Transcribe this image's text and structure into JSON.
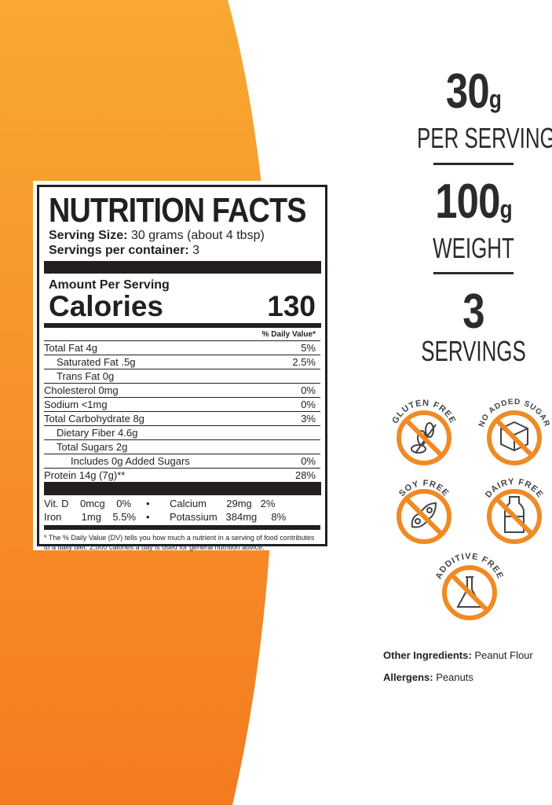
{
  "colors": {
    "orange_light": "#f9a832",
    "orange_dark": "#f47b20",
    "text": "#231f20",
    "badge": "#f08a24"
  },
  "label": {
    "title": "NUTRITION FACTS",
    "serving_size_label": "Serving Size:",
    "serving_size": "30 grams (about 4 tbsp)",
    "servings_label": "Servings per container:",
    "servings": "3",
    "amount_per_serving": "Amount Per Serving",
    "calories_label": "Calories",
    "calories": "130",
    "daily_value_header": "% Daily Value*",
    "rows": [
      {
        "name": "Total Fat  4g",
        "dv": "5%"
      },
      {
        "name": "Saturated Fat .5g",
        "dv": "2.5%"
      },
      {
        "name": "Trans Fat 0g",
        "dv": ""
      },
      {
        "name": "Cholesterol 0mg",
        "dv": "0%"
      },
      {
        "name": "Sodium <1mg",
        "dv": "0%"
      },
      {
        "name": "Total Carbohydrate  8g",
        "dv": "3%"
      },
      {
        "name": "Dietary Fiber  4.6g",
        "dv": ""
      },
      {
        "name": "Total Sugars  2g",
        "dv": ""
      },
      {
        "name": "Includes 0g Added Sugars",
        "dv": "0%"
      },
      {
        "name": "Protein 14g (7g)**",
        "dv": "28%"
      }
    ],
    "vitamins": [
      {
        "left": "Vit. D    0mcg    0%",
        "right": "Calcium       29mg   2%"
      },
      {
        "left": "Iron       1mg    5.5%",
        "right": "Potassium   384mg     8%"
      }
    ],
    "bullet": "•",
    "footnote": "* The % Daily Value (DV) tells you how much a nutrient in a serving of food contributes to a daily diet. 2,000 calories a day is used for general nutrition advice."
  },
  "stats": [
    {
      "value": "30",
      "unit": "g",
      "label": "PER SERVING"
    },
    {
      "value": "100",
      "unit": "g",
      "label": "WEIGHT"
    },
    {
      "value": "3",
      "unit": "",
      "label": "SERVINGS"
    }
  ],
  "badges": [
    {
      "text": "GLUTEN FREE",
      "icon": "wheat-icon"
    },
    {
      "text": "NO ADDED SUGAR",
      "icon": "sugar-cube-icon"
    },
    {
      "text": "SOY FREE",
      "icon": "soybean-icon"
    },
    {
      "text": "DAIRY FREE",
      "icon": "milk-bottle-icon"
    },
    {
      "text": "ADDITIVE FREE",
      "icon": "flask-icon"
    }
  ],
  "ingredients": {
    "label": "Other Ingredients:",
    "value": "Peanut Flour"
  },
  "allergens": {
    "label": "Allergens:",
    "value": "Peanuts"
  }
}
